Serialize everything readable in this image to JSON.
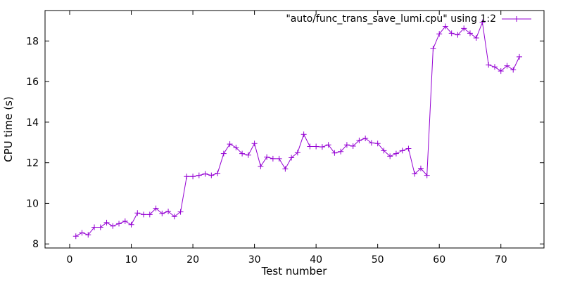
{
  "chart_data": {
    "type": "line",
    "title": "",
    "xlabel": "Test number",
    "ylabel": "CPU time (s)",
    "xlim": [
      -4,
      77
    ],
    "ylim": [
      7.8,
      19.5
    ],
    "xticks": [
      0,
      10,
      20,
      30,
      40,
      50,
      60,
      70
    ],
    "yticks": [
      8,
      10,
      12,
      14,
      16,
      18
    ],
    "grid": false,
    "legend_position": "top-right",
    "colors": {
      "series": "#9400d3",
      "axis": "#000000",
      "background": "#ffffff"
    },
    "series": [
      {
        "name": "\"auto/func_trans_save_lumi.cpu\" using 1:2",
        "marker": "plus",
        "x": [
          1,
          2,
          3,
          4,
          5,
          6,
          7,
          8,
          9,
          10,
          11,
          12,
          13,
          14,
          15,
          16,
          17,
          18,
          19,
          20,
          21,
          22,
          23,
          24,
          25,
          26,
          27,
          28,
          29,
          30,
          31,
          32,
          33,
          34,
          35,
          36,
          37,
          38,
          39,
          40,
          41,
          42,
          43,
          44,
          45,
          46,
          47,
          48,
          49,
          50,
          51,
          52,
          53,
          54,
          55,
          56,
          57,
          58,
          59,
          60,
          61,
          62,
          63,
          64,
          65,
          66,
          67,
          68,
          69,
          70,
          71,
          72,
          73
        ],
        "y": [
          8.38,
          8.55,
          8.45,
          8.82,
          8.82,
          9.05,
          8.88,
          9.0,
          9.12,
          8.95,
          9.52,
          9.45,
          9.45,
          9.75,
          9.5,
          9.6,
          9.35,
          9.58,
          11.32,
          11.32,
          11.38,
          11.45,
          11.38,
          11.48,
          12.45,
          12.92,
          12.75,
          12.45,
          12.38,
          12.95,
          11.82,
          12.28,
          12.2,
          12.2,
          11.7,
          12.25,
          12.5,
          13.4,
          12.8,
          12.8,
          12.78,
          12.88,
          12.48,
          12.55,
          12.88,
          12.82,
          13.1,
          13.2,
          12.98,
          12.95,
          12.6,
          12.32,
          12.45,
          12.6,
          12.7,
          11.45,
          11.72,
          11.38,
          17.62,
          18.35,
          18.72,
          18.38,
          18.3,
          18.62,
          18.38,
          18.15,
          18.92,
          16.82,
          16.72,
          16.52,
          16.78,
          16.58,
          17.22
        ]
      }
    ]
  }
}
